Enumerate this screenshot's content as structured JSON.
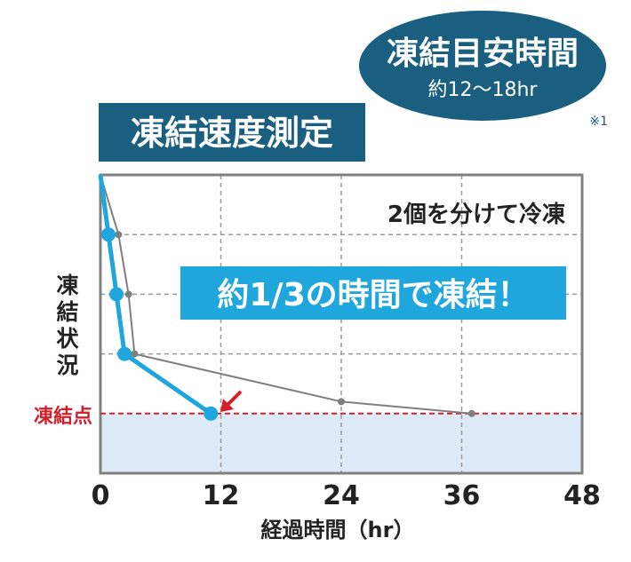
{
  "chart_data": {
    "type": "line",
    "title": "凍結速度測定",
    "badge": {
      "title": "凍結目安時間",
      "subtitle": "約12〜18hr",
      "footnote": "※1"
    },
    "annotation_top": "2個を分けて冷凍",
    "annotation_main": "約1/3の時間で凍結！",
    "xlabel": "経過時間（hr）",
    "ylabel": "凍結状況",
    "freezing_label": "凍結点",
    "xlim": [
      0,
      48
    ],
    "x_ticks": [
      "0",
      "12",
      "24",
      "36",
      "48"
    ],
    "ylim": [
      0,
      5
    ],
    "grid": true,
    "freezing_level": 1,
    "colors": {
      "fast_series": "#1fa6dd",
      "slow_series": "#7f7f7f",
      "freeze_line": "#d3202a",
      "frozen_zone": "#dcebf7",
      "title_box": "#1a5f80",
      "badge_ellipse": "#1a5f80",
      "arrow": "#d3202a"
    },
    "series": [
      {
        "x": [
          0,
          0.8,
          1.6,
          2.4,
          11
        ],
        "y": [
          5,
          4,
          3,
          2,
          1
        ]
      },
      {
        "x": [
          0,
          1.8,
          2.8,
          3.4,
          24,
          37
        ],
        "y": [
          5,
          4,
          3,
          2,
          1.2,
          1
        ]
      }
    ]
  }
}
